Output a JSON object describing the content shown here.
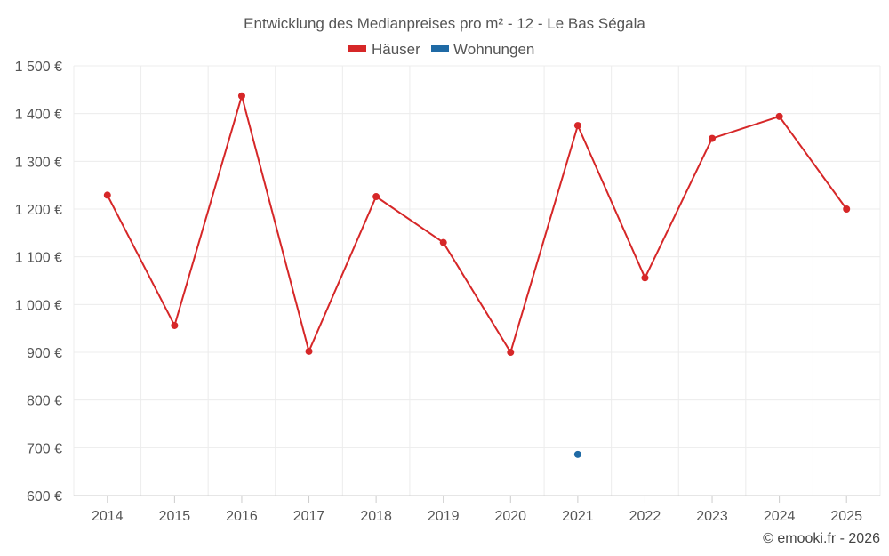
{
  "chart_data": {
    "type": "line",
    "title": "Entwicklung des Medianpreises pro m² - 12 - Le Bas Ségala",
    "categories": [
      "2014",
      "2015",
      "2016",
      "2017",
      "2018",
      "2019",
      "2020",
      "2021",
      "2022",
      "2023",
      "2024",
      "2025"
    ],
    "y_ticks": [
      "600 €",
      "700 €",
      "800 €",
      "900 €",
      "1 000 €",
      "1 100 €",
      "1 200 €",
      "1 300 €",
      "1 400 €",
      "1 500 €"
    ],
    "ylim": [
      600,
      1500
    ],
    "grid": true,
    "legend_position": "top-center",
    "series": [
      {
        "name": "Häuser",
        "color": "#d62728",
        "values": [
          1229,
          956,
          1437,
          902,
          1226,
          1130,
          900,
          1375,
          1056,
          1348,
          1394,
          1200
        ]
      },
      {
        "name": "Wohnungen",
        "color": "#1f6aa5",
        "values": [
          null,
          null,
          null,
          null,
          null,
          null,
          null,
          686,
          null,
          null,
          null,
          null
        ]
      }
    ]
  },
  "credit": "© emooki.fr - 2026"
}
